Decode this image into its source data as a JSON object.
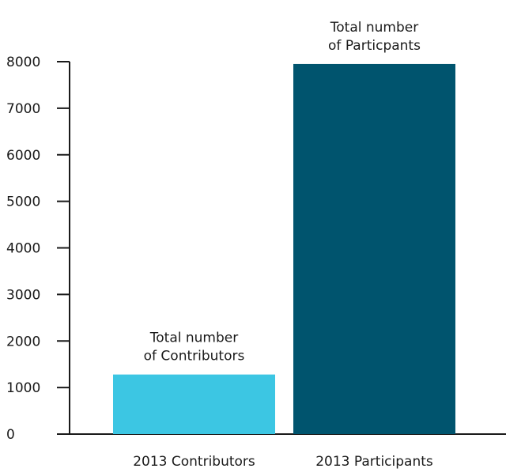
{
  "chart_data": {
    "type": "bar",
    "categories": [
      "2013 Contributors",
      "2013 Participants"
    ],
    "values": [
      1280,
      7950
    ],
    "colors": [
      "#3cc6e3",
      "#00546e"
    ],
    "annotations": [
      [
        "Total number",
        "of Contributors"
      ],
      [
        "Total number",
        "of Particpants"
      ]
    ],
    "yticks": [
      0,
      1000,
      2000,
      3000,
      4000,
      5000,
      6000,
      7000,
      8000
    ],
    "ylim": [
      0,
      8000
    ],
    "grid": false,
    "legend": "none"
  }
}
